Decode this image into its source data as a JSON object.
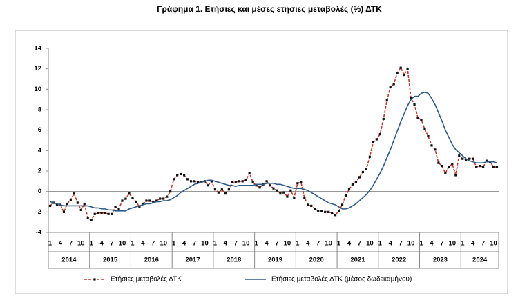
{
  "chart_data": {
    "type": "line",
    "title": "Γράφημα 1. Ετήσιες και μέσες ετήσιες μεταβολές (%) ΔΤΚ",
    "categories": [
      "1",
      null,
      null,
      "4",
      null,
      null,
      "7",
      null,
      null,
      "10",
      null,
      null,
      "1",
      null,
      null,
      "4",
      null,
      null,
      "7",
      null,
      null,
      "10",
      null,
      null,
      "1",
      null,
      null,
      "4",
      null,
      null,
      "7",
      null,
      null,
      "10",
      null,
      null,
      "1",
      null,
      null,
      "4",
      null,
      null,
      "7",
      null,
      null,
      "10",
      null,
      null,
      "1",
      null,
      null,
      "4",
      null,
      null,
      "7",
      null,
      null,
      "10",
      null,
      null,
      "1",
      null,
      null,
      "4",
      null,
      null,
      "7",
      null,
      null,
      "10",
      null,
      null,
      "1",
      null,
      null,
      "4",
      null,
      null,
      "7",
      null,
      null,
      "10",
      null,
      null,
      "1",
      null,
      null,
      "4",
      null,
      null,
      "7",
      null,
      null,
      "10",
      null,
      null,
      "1",
      null,
      null,
      "4",
      null,
      null,
      "7",
      null,
      null,
      "10",
      null,
      null,
      "1",
      null,
      null,
      "4",
      null,
      null,
      "7",
      null,
      null,
      "10",
      null,
      null,
      "1",
      null,
      null,
      "4",
      null,
      null,
      "7",
      null,
      null,
      "10",
      null
    ],
    "x_groups": [
      "2014",
      "2015",
      "2016",
      "2017",
      "2018",
      "2019",
      "2020",
      "2021",
      "2022",
      "2023",
      "2024"
    ],
    "ylim": [
      -4,
      14
    ],
    "yticks": [
      -4,
      -2,
      0,
      2,
      4,
      6,
      8,
      10,
      12,
      14
    ],
    "grid": false,
    "legend": "bottom",
    "series": [
      {
        "name": "Ετήσιες μεταβολές ΔΤΚ",
        "color": "#c0392b",
        "dashed": true,
        "markers": true,
        "marker_color": "#111111",
        "values": [
          -1.4,
          -1.1,
          -1.3,
          -1.3,
          -2.0,
          -1.2,
          -0.8,
          -0.2,
          -1.1,
          -1.8,
          -1.2,
          -2.6,
          -2.8,
          -2.2,
          -2.1,
          -2.1,
          -2.1,
          -2.2,
          -2.2,
          -1.5,
          -1.7,
          -0.9,
          -0.7,
          -0.2,
          -0.6,
          -1.0,
          -1.5,
          -1.2,
          -0.9,
          -0.9,
          -1.0,
          -0.9,
          -0.7,
          -0.7,
          -0.5,
          0.0,
          1.2,
          1.6,
          1.7,
          1.6,
          1.2,
          1.0,
          1.0,
          0.9,
          0.9,
          1.0,
          0.6,
          1.0,
          0.2,
          -0.1,
          0.2,
          -0.2,
          0.2,
          0.9,
          0.9,
          1.0,
          1.0,
          1.1,
          1.8,
          0.9,
          0.6,
          0.4,
          0.7,
          1.0,
          0.6,
          0.3,
          0.1,
          -0.2,
          -0.1,
          -0.5,
          0.1,
          -0.6,
          0.8,
          0.9,
          -0.6,
          -1.3,
          -1.4,
          -1.7,
          -1.9,
          -1.9,
          -2.0,
          -2.0,
          -2.1,
          -2.3,
          -1.9,
          -1.3,
          -0.4,
          0.2,
          0.7,
          0.9,
          1.4,
          1.9,
          2.2,
          3.4,
          4.8,
          5.1,
          5.6,
          7.1,
          8.9,
          10.2,
          10.5,
          11.6,
          12.1,
          11.4,
          12.0,
          9.1,
          8.5,
          7.2,
          7.0,
          6.1,
          5.4,
          4.5,
          4.1,
          2.8,
          2.5,
          1.8,
          2.4,
          2.7,
          1.6,
          3.5,
          3.2,
          3.1,
          3.2,
          3.2,
          2.4,
          2.5,
          2.4,
          3.0,
          2.9,
          2.4,
          2.4
        ]
      },
      {
        "name": "Ετήσιες μεταβολές ΔΤΚ (μέσος δωδεκαμήνου)",
        "color": "#2e5a87",
        "dashed": false,
        "markers": false,
        "values": [
          -1.0,
          -1.1,
          -1.2,
          -1.3,
          -1.4,
          -1.4,
          -1.4,
          -1.4,
          -1.4,
          -1.4,
          -1.4,
          -1.4,
          -1.5,
          -1.6,
          -1.6,
          -1.7,
          -1.7,
          -1.8,
          -1.8,
          -1.9,
          -1.9,
          -1.9,
          -1.9,
          -1.7,
          -1.6,
          -1.5,
          -1.4,
          -1.3,
          -1.2,
          -1.2,
          -1.1,
          -1.0,
          -1.0,
          -0.9,
          -0.9,
          -0.8,
          -0.6,
          -0.4,
          -0.1,
          0.1,
          0.3,
          0.5,
          0.7,
          0.8,
          0.9,
          1.0,
          1.1,
          1.1,
          1.0,
          0.9,
          0.8,
          0.7,
          0.6,
          0.6,
          0.5,
          0.6,
          0.6,
          0.6,
          0.6,
          0.6,
          0.7,
          0.7,
          0.7,
          0.8,
          0.8,
          0.8,
          0.7,
          0.7,
          0.6,
          0.5,
          0.4,
          0.3,
          0.3,
          0.3,
          0.2,
          0.1,
          -0.1,
          -0.3,
          -0.5,
          -0.7,
          -0.9,
          -1.1,
          -1.2,
          -1.3,
          -1.5,
          -1.7,
          -1.7,
          -1.6,
          -1.4,
          -1.2,
          -0.9,
          -0.6,
          -0.3,
          0.1,
          0.6,
          1.2,
          1.8,
          2.5,
          3.3,
          4.1,
          5.0,
          5.9,
          6.8,
          7.6,
          8.4,
          9.0,
          9.3,
          9.3,
          9.6,
          9.7,
          9.6,
          9.1,
          8.5,
          7.7,
          6.9,
          6.0,
          5.3,
          4.6,
          4.1,
          3.8,
          3.5,
          3.2,
          3.0,
          2.9,
          2.8,
          2.8,
          2.8,
          2.9,
          2.9,
          2.9,
          2.8
        ]
      }
    ]
  }
}
